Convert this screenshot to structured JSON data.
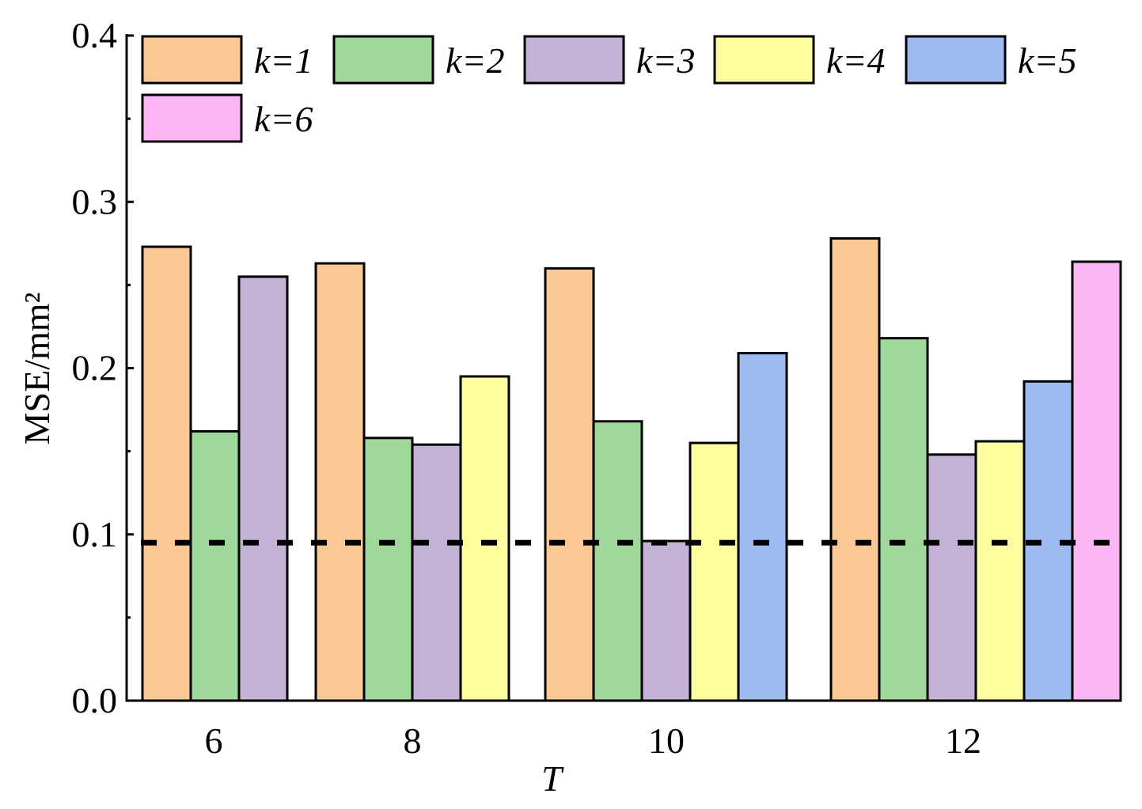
{
  "chart_data": {
    "type": "bar",
    "xlabel": "T",
    "ylabel": "MSE/mm²",
    "ylim": [
      0.0,
      0.4
    ],
    "y_ticks": [
      "0.0",
      "0.1",
      "0.2",
      "0.3",
      "0.4"
    ],
    "categories": [
      "6",
      "8",
      "10",
      "12"
    ],
    "reference_line": {
      "value": 0.095,
      "style": "dashed"
    },
    "legend_position": "top-left",
    "grid": false,
    "series": [
      {
        "name": "k=1",
        "color": "#FAC892",
        "values": [
          0.273,
          0.263,
          0.26,
          0.278
        ]
      },
      {
        "name": "k=2",
        "color": "#A0D89C",
        "values": [
          0.162,
          0.158,
          0.168,
          0.218
        ]
      },
      {
        "name": "k=3",
        "color": "#C3B1D6",
        "values": [
          0.255,
          0.154,
          0.096,
          0.148
        ]
      },
      {
        "name": "k=4",
        "color": "#FEFE9E",
        "values": [
          null,
          0.195,
          0.155,
          0.156
        ]
      },
      {
        "name": "k=5",
        "color": "#9DBBF1",
        "values": [
          null,
          null,
          0.209,
          0.192
        ]
      },
      {
        "name": "k=6",
        "color": "#FCB6F6",
        "values": [
          null,
          null,
          null,
          0.264
        ]
      }
    ]
  }
}
